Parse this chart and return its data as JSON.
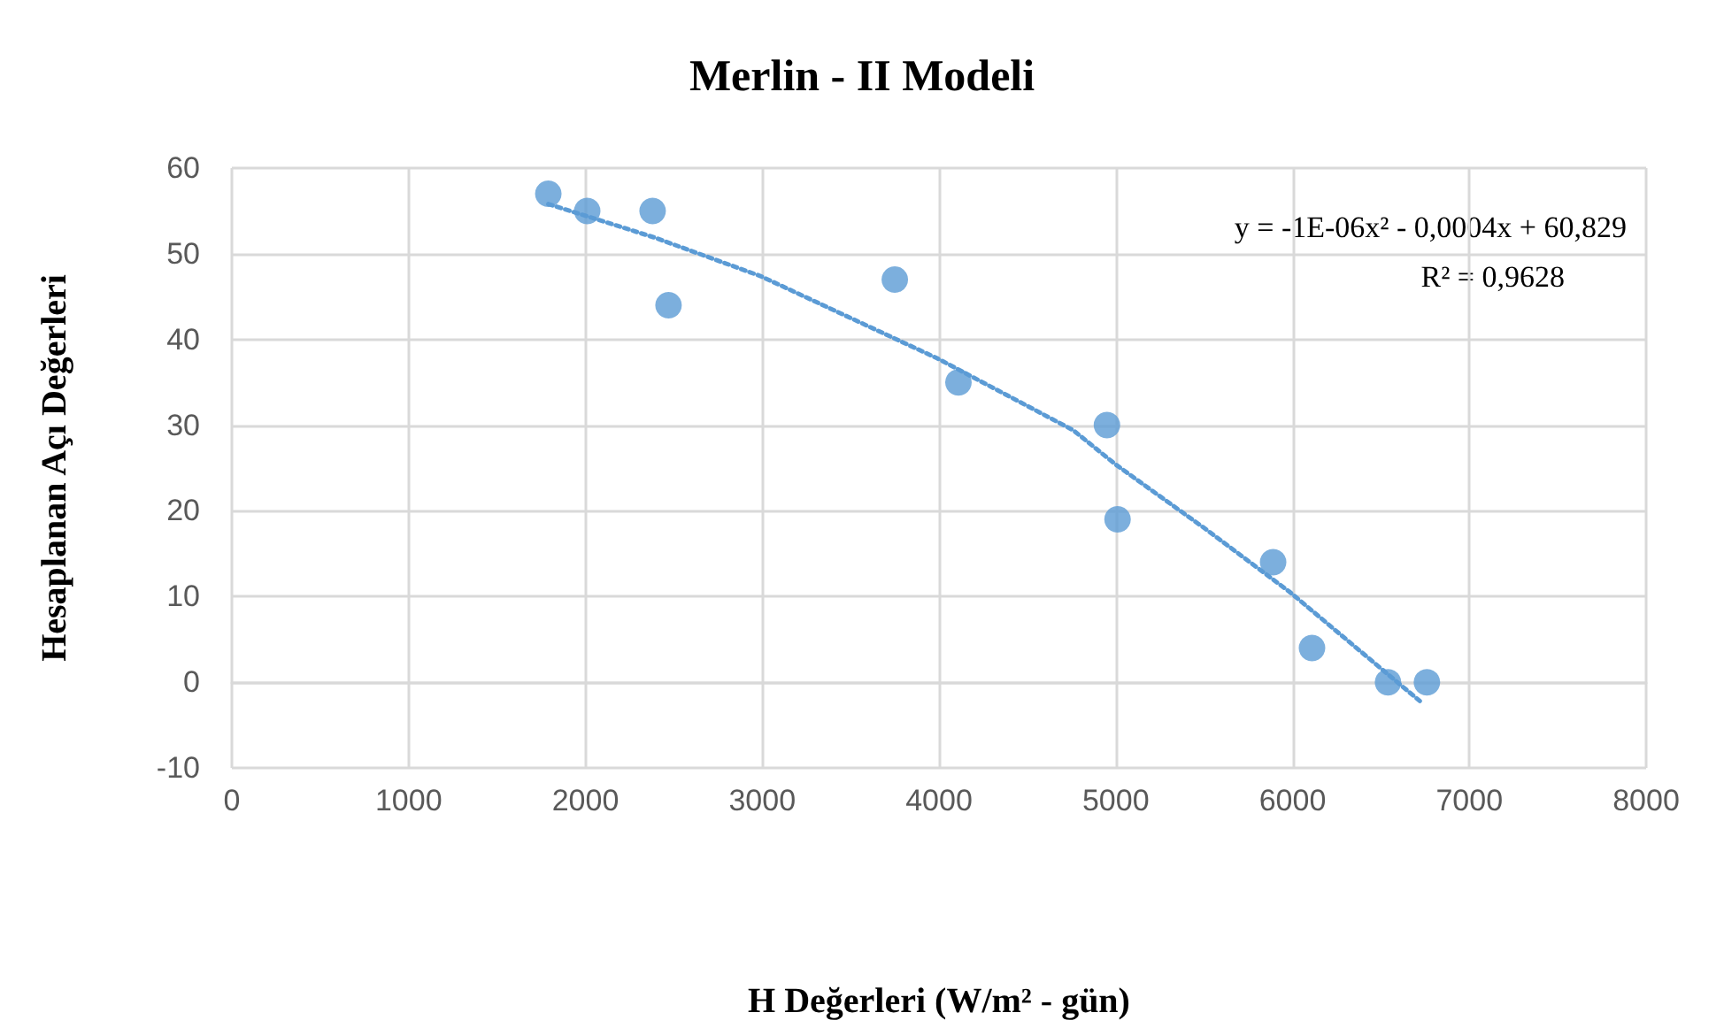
{
  "chart_data": {
    "type": "scatter",
    "title": "Merlin - II Modeli",
    "xlabel": "H Değerleri (W/m² - gün)",
    "ylabel": "Hesaplanan Açı Değerleri",
    "annotations": [
      "y = -1E-06x² - 0,0004x + 60,829",
      "R² = 0,9628"
    ],
    "xlim": [
      0,
      8000
    ],
    "xticks": [
      0,
      1000,
      2000,
      3000,
      4000,
      5000,
      6000,
      7000,
      8000
    ],
    "ylim": [
      -10,
      60
    ],
    "yticks": [
      -10,
      0,
      10,
      20,
      30,
      40,
      50,
      60
    ],
    "grid": true,
    "marker": "circle",
    "series": [
      {
        "color": "#5b9bd5",
        "x": [
          1790,
          2010,
          2380,
          2470,
          3750,
          4110,
          4950,
          5010,
          5890,
          6110,
          6540,
          6760
        ],
        "values": [
          57,
          55,
          55,
          44,
          47,
          35,
          30,
          19,
          14,
          4,
          0,
          0
        ]
      },
      {
        "type": "line",
        "color": "#5b9bd5",
        "marker": "none",
        "line_style": "dotted",
        "x": [
          1790,
          2390,
          2990,
          3990,
          4760,
          5000,
          5500,
          5980,
          6720
        ],
        "values": [
          55.8,
          51.9,
          47.4,
          37.8,
          29.4,
          25.4,
          18,
          10.6,
          -2.2
        ]
      }
    ]
  }
}
